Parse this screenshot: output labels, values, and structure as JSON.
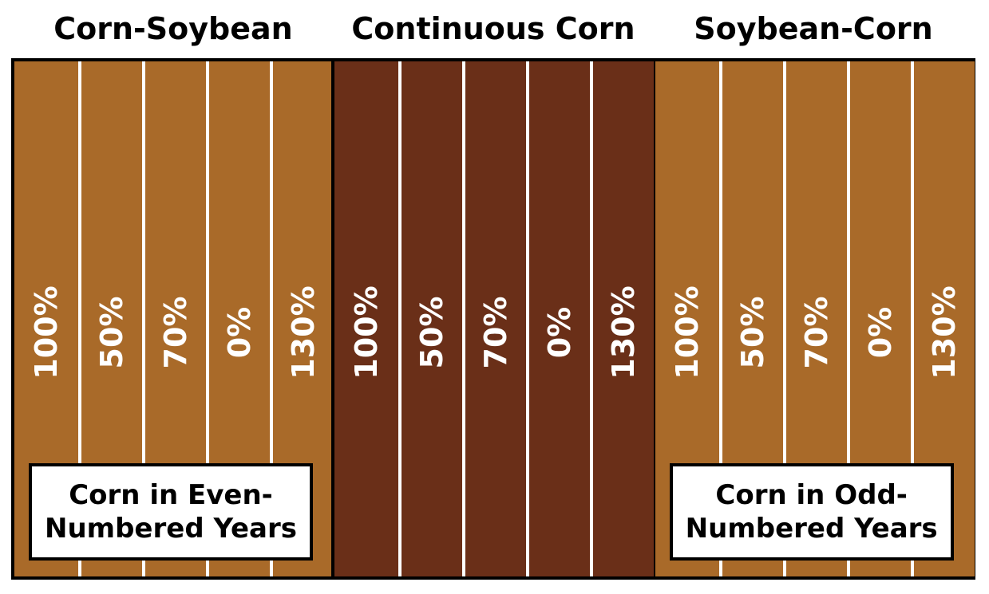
{
  "treatments": [
    {
      "title": "Corn-Soybean",
      "rates": [
        "100%",
        "50%",
        "70%",
        "0%",
        "130%"
      ],
      "note": "Corn in Even-Numbered Years",
      "color": "#a96a29"
    },
    {
      "title": "Continuous Corn",
      "rates": [
        "100%",
        "50%",
        "70%",
        "0%",
        "130%"
      ],
      "note": "",
      "color": "#6a2f18"
    },
    {
      "title": "Soybean-Corn",
      "rates": [
        "100%",
        "50%",
        "70%",
        "0%",
        "130%"
      ],
      "note": "Corn in Odd-Numbered Years",
      "color": "#a96a29"
    }
  ]
}
